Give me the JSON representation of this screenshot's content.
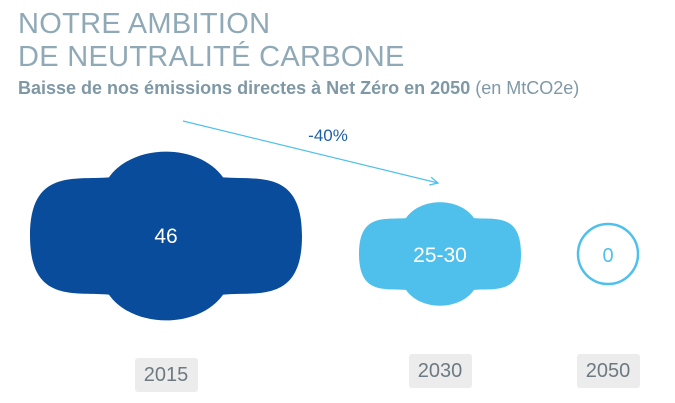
{
  "header": {
    "title_line1": "NOTRE AMBITION",
    "title_line2": "DE NEUTRALITÉ CARBONE",
    "subtitle": "Baisse de nos émissions directes à Net Zéro en 2050",
    "subtitle_unit": "(en MtCO2e)"
  },
  "chart_data": {
    "type": "bubble",
    "title": "Baisse de nos émissions directes à Net Zéro en 2050",
    "unit": "MtCO2e",
    "categories": [
      "2015",
      "2030",
      "2050"
    ],
    "values": [
      46,
      27.5,
      0
    ],
    "value_labels": [
      "46",
      "25-30",
      "0"
    ],
    "colors": [
      "#0a4c9c",
      "#4fc0ec",
      "#ffffff"
    ],
    "outline_color": "#4fc0ec",
    "annotation": {
      "label": "-40%",
      "from": "2015",
      "to": "2030",
      "color": "#4fc0ec"
    }
  }
}
